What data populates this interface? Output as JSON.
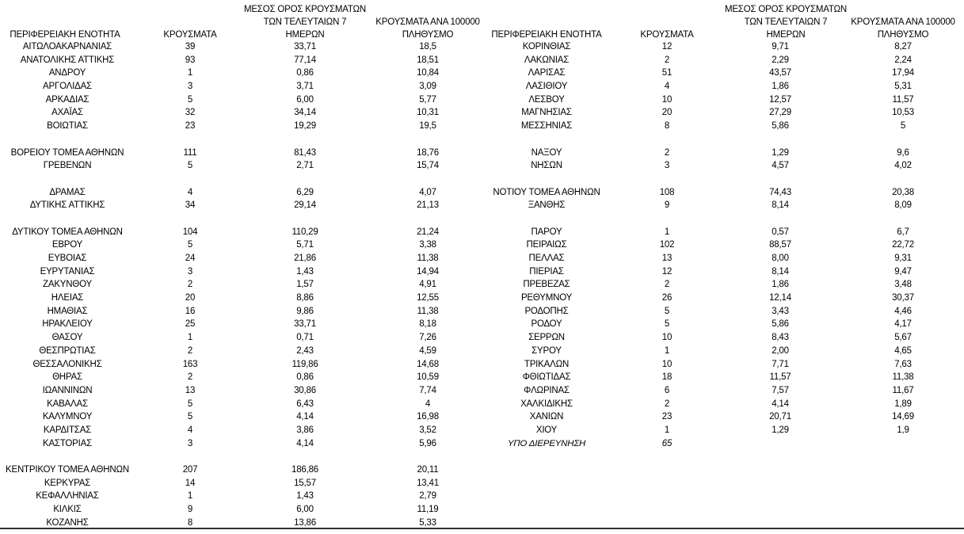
{
  "tables": [
    {
      "header": [
        [
          "ΠΕΡΙΦΕΡΕΙΑΚΗ ΕΝΟΤΗΤΑ"
        ],
        [
          "ΚΡΟΥΣΜΑΤΑ"
        ],
        [
          "ΜΕΣΟΣ ΟΡΟΣ ΚΡΟΥΣΜΑΤΩΝ",
          "ΤΩΝ ΤΕΛΕΥΤΑΙΩΝ 7",
          "ΗΜΕΡΩΝ"
        ],
        [
          "ΚΡΟΥΣΜΑΤΑ ΑΝΑ 100000",
          "ΠΛΗΘΥΣΜΟ"
        ]
      ],
      "rows": [
        [
          "ΑΙΤΩΛΟΑΚΑΡΝΑΝΙΑΣ",
          "39",
          "33,71",
          "18,5"
        ],
        [
          "ΑΝΑΤΟΛΙΚΗΣ ΑΤΤΙΚΗΣ",
          "93",
          "77,14",
          "18,51"
        ],
        [
          "ΑΝΔΡΟΥ",
          "1",
          "0,86",
          "10,84"
        ],
        [
          "ΑΡΓΟΛΙΔΑΣ",
          "3",
          "3,71",
          "3,09"
        ],
        [
          "ΑΡΚΑΔΙΑΣ",
          "5",
          "6,00",
          "5,77"
        ],
        [
          "ΑΧΑΪΑΣ",
          "32",
          "34,14",
          "10,31"
        ],
        [
          "ΒΟΙΩΤΙΑΣ",
          "23",
          "19,29",
          "19,5"
        ],
        null,
        [
          "ΒΟΡΕΙΟΥ ΤΟΜΕΑ ΑΘΗΝΩΝ",
          "111",
          "81,43",
          "18,76"
        ],
        [
          "ΓΡΕΒΕΝΩΝ",
          "5",
          "2,71",
          "15,74"
        ],
        null,
        [
          "ΔΡΑΜΑΣ",
          "4",
          "6,29",
          "4,07"
        ],
        [
          "ΔΥΤΙΚΗΣ ΑΤΤΙΚΗΣ",
          "34",
          "29,14",
          "21,13"
        ],
        null,
        [
          "ΔΥΤΙΚΟΥ ΤΟΜΕΑ ΑΘΗΝΩΝ",
          "104",
          "110,29",
          "21,24"
        ],
        [
          "ΕΒΡΟΥ",
          "5",
          "5,71",
          "3,38"
        ],
        [
          "ΕΥΒΟΙΑΣ",
          "24",
          "21,86",
          "11,38"
        ],
        [
          "ΕΥΡΥΤΑΝΙΑΣ",
          "3",
          "1,43",
          "14,94"
        ],
        [
          "ΖΑΚΥΝΘΟΥ",
          "2",
          "1,57",
          "4,91"
        ],
        [
          "ΗΛΕΙΑΣ",
          "20",
          "8,86",
          "12,55"
        ],
        [
          "ΗΜΑΘΙΑΣ",
          "16",
          "9,86",
          "11,38"
        ],
        [
          "ΗΡΑΚΛΕΙΟΥ",
          "25",
          "33,71",
          "8,18"
        ],
        [
          "ΘΑΣΟΥ",
          "1",
          "0,71",
          "7,26"
        ],
        [
          "ΘΕΣΠΡΩΤΙΑΣ",
          "2",
          "2,43",
          "4,59"
        ],
        [
          "ΘΕΣΣΑΛΟΝΙΚΗΣ",
          "163",
          "119,86",
          "14,68"
        ],
        [
          "ΘΗΡΑΣ",
          "2",
          "0,86",
          "10,59"
        ],
        [
          "ΙΩΑΝΝΙΝΩΝ",
          "13",
          "30,86",
          "7,74"
        ],
        [
          "ΚΑΒΑΛΑΣ",
          "5",
          "6,43",
          "4"
        ],
        [
          "ΚΑΛΥΜΝΟΥ",
          "5",
          "4,14",
          "16,98"
        ],
        [
          "ΚΑΡΔΙΤΣΑΣ",
          "4",
          "3,86",
          "3,52"
        ],
        [
          "ΚΑΣΤΟΡΙΑΣ",
          "3",
          "4,14",
          "5,96"
        ],
        null,
        [
          "ΚΕΝΤΡΙΚΟΥ ΤΟΜΕΑ ΑΘΗΝΩΝ",
          "207",
          "186,86",
          "20,11"
        ],
        [
          "ΚΕΡΚΥΡΑΣ",
          "14",
          "15,57",
          "13,41"
        ],
        [
          "ΚΕΦΑΛΛΗΝΙΑΣ",
          "1",
          "1,43",
          "2,79"
        ],
        [
          "ΚΙΛΚΙΣ",
          "9",
          "6,00",
          "11,19"
        ],
        [
          "ΚΟΖΑΝΗΣ",
          "8",
          "13,86",
          "5,33"
        ]
      ]
    },
    {
      "header": [
        [
          "ΠΕΡΙΦΕΡΕΙΑΚΗ ΕΝΟΤΗΤΑ"
        ],
        [
          "ΚΡΟΥΣΜΑΤΑ"
        ],
        [
          "ΜΕΣΟΣ ΟΡΟΣ ΚΡΟΥΣΜΑΤΩΝ",
          "ΤΩΝ ΤΕΛΕΥΤΑΙΩΝ 7",
          "ΗΜΕΡΩΝ"
        ],
        [
          "ΚΡΟΥΣΜΑΤΑ ΑΝΑ 100000",
          "ΠΛΗΘΥΣΜΟ"
        ]
      ],
      "rows": [
        [
          "ΚΟΡΙΝΘΙΑΣ",
          "12",
          "9,71",
          "8,27"
        ],
        [
          "ΛΑΚΩΝΙΑΣ",
          "2",
          "2,29",
          "2,24"
        ],
        [
          "ΛΑΡΙΣΑΣ",
          "51",
          "43,57",
          "17,94"
        ],
        [
          "ΛΑΣΙΘΙΟΥ",
          "4",
          "1,86",
          "5,31"
        ],
        [
          "ΛΕΣΒΟΥ",
          "10",
          "12,57",
          "11,57"
        ],
        [
          "ΜΑΓΝΗΣΙΑΣ",
          "20",
          "27,29",
          "10,53"
        ],
        [
          "ΜΕΣΣΗΝΙΑΣ",
          "8",
          "5,86",
          "5"
        ],
        null,
        [
          "ΝΑΞΟΥ",
          "2",
          "1,29",
          "9,6"
        ],
        [
          "ΝΗΣΩΝ",
          "3",
          "4,57",
          "4,02"
        ],
        null,
        [
          "ΝΟΤΙΟΥ ΤΟΜΕΑ ΑΘΗΝΩΝ",
          "108",
          "74,43",
          "20,38"
        ],
        [
          "ΞΑΝΘΗΣ",
          "9",
          "8,14",
          "8,09"
        ],
        null,
        [
          "ΠΑΡΟΥ",
          "1",
          "0,57",
          "6,7"
        ],
        [
          "ΠΕΙΡΑΙΩΣ",
          "102",
          "88,57",
          "22,72"
        ],
        [
          "ΠΕΛΛΑΣ",
          "13",
          "8,00",
          "9,31"
        ],
        [
          "ΠΙΕΡΙΑΣ",
          "12",
          "8,14",
          "9,47"
        ],
        [
          "ΠΡΕΒΕΖΑΣ",
          "2",
          "1,86",
          "3,48"
        ],
        [
          "ΡΕΘΥΜΝΟΥ",
          "26",
          "12,14",
          "30,37"
        ],
        [
          "ΡΟΔΟΠΗΣ",
          "5",
          "3,43",
          "4,46"
        ],
        [
          "ΡΟΔΟΥ",
          "5",
          "5,86",
          "4,17"
        ],
        [
          "ΣΕΡΡΩΝ",
          "10",
          "8,43",
          "5,67"
        ],
        [
          "ΣΥΡΟΥ",
          "1",
          "2,00",
          "4,65"
        ],
        [
          "ΤΡΙΚΑΛΩΝ",
          "10",
          "7,71",
          "7,63"
        ],
        [
          "ΦΘΙΩΤΙΔΑΣ",
          "18",
          "11,57",
          "11,38"
        ],
        [
          "ΦΛΩΡΙΝΑΣ",
          "6",
          "7,57",
          "11,67"
        ],
        [
          "ΧΑΛΚΙΔΙΚΗΣ",
          "2",
          "4,14",
          "1,89"
        ],
        [
          "ΧΑΝΙΩΝ",
          "23",
          "20,71",
          "14,69"
        ],
        [
          "ΧΙΟΥ",
          "1",
          "1,29",
          "1,9"
        ],
        [
          "ΥΠΟ ΔΙΕΡΕΥΝΗΣΗ",
          "65"
        ]
      ]
    }
  ]
}
